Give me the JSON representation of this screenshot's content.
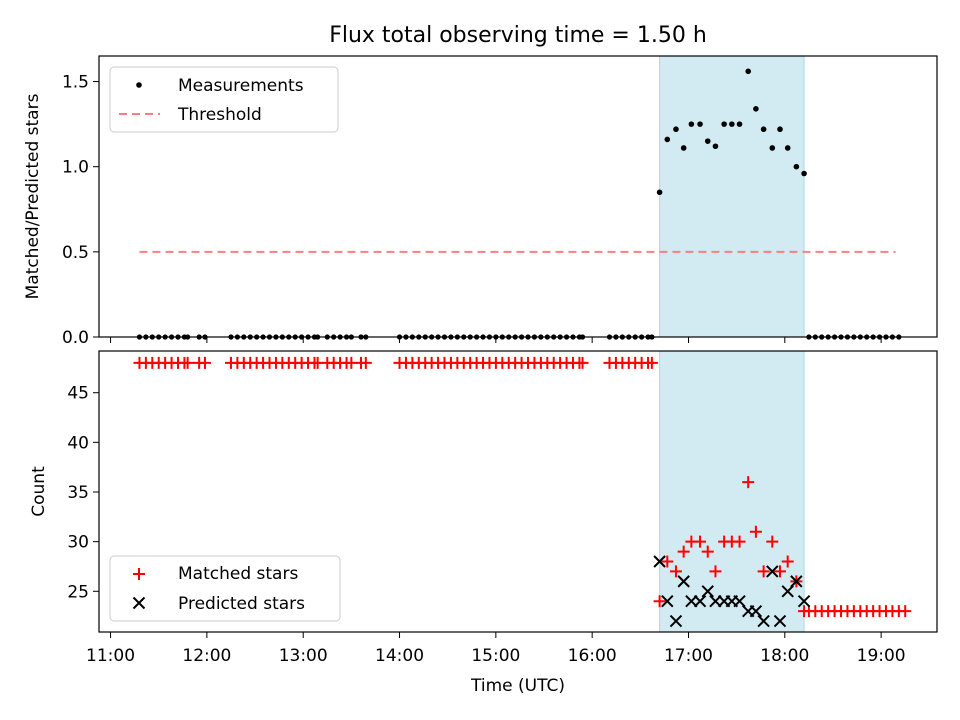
{
  "title": "Flux total observing time = 1.50 h",
  "colors": {
    "measurement": "#000000",
    "threshold": "#ff7f7f",
    "matched": "#ff0000",
    "predicted": "#000000",
    "highlight": "#add8e6"
  },
  "chart_data": [
    {
      "type": "scatter",
      "ylabel": "Matched/Predicted stars",
      "ylim": [
        0,
        1.65
      ],
      "yticks": [
        0.0,
        0.5,
        1.0,
        1.5
      ],
      "ytick_labels": [
        "0.0",
        "0.5",
        "1.0",
        "1.5"
      ],
      "highlight_span_hours": [
        16.7,
        18.2
      ],
      "legend": {
        "placement": "upper-left",
        "entries": [
          "Measurements",
          "Threshold"
        ]
      },
      "threshold": {
        "name": "Threshold",
        "value": 0.5,
        "x_range_hours": [
          11.3,
          19.15
        ]
      },
      "series": [
        {
          "name": "Measurements",
          "zero_time_ranges_hours": [
            [
              11.3,
              11.8
            ],
            [
              11.92,
              11.98
            ],
            [
              12.25,
              13.15
            ],
            [
              13.25,
              13.5
            ],
            [
              13.6,
              13.65
            ],
            [
              14.0,
              15.9
            ],
            [
              16.18,
              16.62
            ],
            [
              18.25,
              19.2
            ]
          ],
          "zero_step_hours": 0.0667,
          "points": [
            [
              16.7,
              0.85
            ],
            [
              16.78,
              1.16
            ],
            [
              16.87,
              1.22
            ],
            [
              16.95,
              1.11
            ],
            [
              17.03,
              1.25
            ],
            [
              17.12,
              1.25
            ],
            [
              17.2,
              1.15
            ],
            [
              17.28,
              1.12
            ],
            [
              17.37,
              1.25
            ],
            [
              17.45,
              1.25
            ],
            [
              17.53,
              1.25
            ],
            [
              17.62,
              1.56
            ],
            [
              17.7,
              1.34
            ],
            [
              17.78,
              1.22
            ],
            [
              17.87,
              1.11
            ],
            [
              17.95,
              1.22
            ],
            [
              18.03,
              1.11
            ],
            [
              18.12,
              1.0
            ],
            [
              18.2,
              0.96
            ]
          ]
        }
      ]
    },
    {
      "type": "scatter",
      "xlabel": "Time (UTC)",
      "ylabel": "Count",
      "xlim_hours": [
        10.88,
        19.58
      ],
      "ylim": [
        20.9,
        49.2
      ],
      "xticks_hours": [
        11,
        12,
        13,
        14,
        15,
        16,
        17,
        18,
        19
      ],
      "xtick_labels": [
        "11:00",
        "12:00",
        "13:00",
        "14:00",
        "15:00",
        "16:00",
        "17:00",
        "18:00",
        "19:00"
      ],
      "yticks": [
        25,
        30,
        35,
        40,
        45
      ],
      "ytick_labels": [
        "25",
        "30",
        "35",
        "40",
        "45"
      ],
      "highlight_span_hours": [
        16.7,
        18.2
      ],
      "legend": {
        "placement": "lower-left",
        "entries": [
          "Matched stars",
          "Predicted stars"
        ]
      },
      "series": [
        {
          "name": "Matched stars",
          "constant_value": 48,
          "constant_time_ranges_hours": [
            [
              11.3,
              11.8
            ],
            [
              11.92,
              11.98
            ],
            [
              12.25,
              13.15
            ],
            [
              13.25,
              13.5
            ],
            [
              13.6,
              13.65
            ],
            [
              14.0,
              15.9
            ],
            [
              16.18,
              16.62
            ]
          ],
          "step_hours": 0.0667,
          "points": [
            [
              16.7,
              24
            ],
            [
              16.78,
              28
            ],
            [
              16.87,
              27
            ],
            [
              16.95,
              29
            ],
            [
              17.03,
              30
            ],
            [
              17.12,
              30
            ],
            [
              17.2,
              29
            ],
            [
              17.28,
              27
            ],
            [
              17.37,
              30
            ],
            [
              17.45,
              30
            ],
            [
              17.53,
              30
            ],
            [
              17.62,
              36
            ],
            [
              17.7,
              31
            ],
            [
              17.78,
              27
            ],
            [
              17.87,
              30
            ],
            [
              17.95,
              27
            ],
            [
              18.03,
              28
            ],
            [
              18.12,
              26
            ],
            [
              18.2,
              23
            ]
          ],
          "tail_value": 23,
          "tail_time_range_hours": [
            18.25,
            19.25
          ]
        },
        {
          "name": "Predicted stars",
          "points": [
            [
              16.7,
              28
            ],
            [
              16.78,
              24
            ],
            [
              16.87,
              22
            ],
            [
              16.95,
              26
            ],
            [
              17.03,
              24
            ],
            [
              17.12,
              24
            ],
            [
              17.2,
              25
            ],
            [
              17.28,
              24
            ],
            [
              17.37,
              24
            ],
            [
              17.45,
              24
            ],
            [
              17.53,
              24
            ],
            [
              17.62,
              23
            ],
            [
              17.7,
              23
            ],
            [
              17.78,
              22
            ],
            [
              17.87,
              27
            ],
            [
              17.95,
              22
            ],
            [
              18.03,
              25
            ],
            [
              18.12,
              26
            ],
            [
              18.2,
              24
            ]
          ]
        }
      ]
    }
  ]
}
